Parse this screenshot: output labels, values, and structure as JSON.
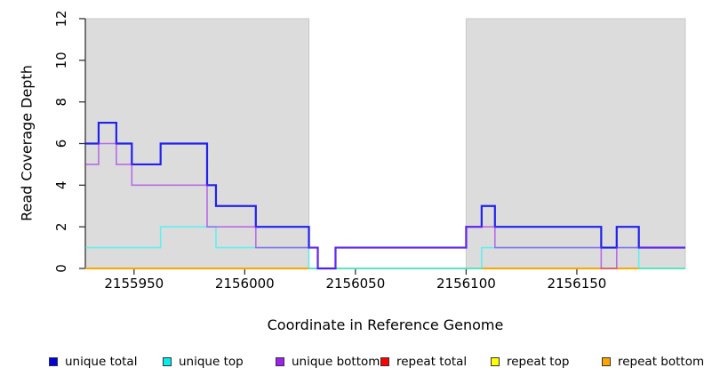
{
  "chart_data": {
    "type": "line",
    "subtype": "step-coverage-plot",
    "title": "",
    "x_axis": {
      "label": "Coordinate in Reference Genome",
      "ticks": [
        2155950,
        2156000,
        2156050,
        2156100,
        2156150
      ],
      "tick_labels": [
        "2155950",
        "2156000",
        "2156050",
        "2156100",
        "2156150"
      ],
      "range": [
        2155928,
        2156199
      ]
    },
    "y_axis": {
      "label": "Read Coverage Depth",
      "ticks": [
        0,
        2,
        4,
        6,
        8,
        10,
        12
      ],
      "tick_labels": [
        "0",
        "2",
        "4",
        "6",
        "8",
        "10",
        "12"
      ],
      "range": [
        0,
        12
      ]
    },
    "grid": "off",
    "shaded_regions": [
      {
        "x0": 2155928,
        "x1": 2156029,
        "color": "#dcdcdc"
      },
      {
        "x0": 2156100,
        "x1": 2156199,
        "color": "#dcdcdc"
      }
    ],
    "series": [
      {
        "name": "unique total",
        "color": "#0000ee",
        "opacity": 0.85,
        "width": 2.2,
        "steps": [
          [
            2155928,
            6
          ],
          [
            2155934,
            7
          ],
          [
            2155942,
            6
          ],
          [
            2155949,
            5
          ],
          [
            2155962,
            6
          ],
          [
            2155983,
            4
          ],
          [
            2155987,
            3
          ],
          [
            2156005,
            2
          ],
          [
            2156029,
            1
          ],
          [
            2156033,
            0
          ],
          [
            2156041,
            1
          ],
          [
            2156100,
            2
          ],
          [
            2156107,
            3
          ],
          [
            2156113,
            2
          ],
          [
            2156161,
            1
          ],
          [
            2156168,
            2
          ],
          [
            2156178,
            1
          ]
        ]
      },
      {
        "name": "unique top",
        "color": "#00ffff",
        "opacity": 0.55,
        "width": 1.6,
        "steps": [
          [
            2155928,
            1
          ],
          [
            2155962,
            2
          ],
          [
            2155987,
            1
          ],
          [
            2156029,
            0
          ],
          [
            2156107,
            1
          ],
          [
            2156178,
            0
          ]
        ]
      },
      {
        "name": "unique bottom",
        "color": "#a020f0",
        "opacity": 0.6,
        "width": 1.6,
        "steps": [
          [
            2155928,
            5
          ],
          [
            2155934,
            6
          ],
          [
            2155942,
            5
          ],
          [
            2155949,
            4
          ],
          [
            2155983,
            2
          ],
          [
            2156005,
            1
          ],
          [
            2156033,
            0
          ],
          [
            2156041,
            1
          ],
          [
            2156100,
            2
          ],
          [
            2156113,
            1
          ],
          [
            2156161,
            0
          ],
          [
            2156168,
            1
          ]
        ]
      },
      {
        "name": "repeat total",
        "color": "#ff0000",
        "opacity": 1,
        "width": 1.5,
        "steps": [
          [
            2155928,
            0
          ]
        ]
      },
      {
        "name": "repeat top",
        "color": "#ffff00",
        "opacity": 1,
        "width": 1.5,
        "steps": [
          [
            2155928,
            0
          ]
        ]
      },
      {
        "name": "repeat bottom",
        "color": "#ffa500",
        "opacity": 1,
        "width": 2,
        "steps": [
          [
            2155928,
            0
          ]
        ]
      }
    ],
    "baseline_segments": [
      {
        "x0": 2155928,
        "x1": 2156029,
        "color": "#ffa500"
      },
      {
        "x0": 2156029,
        "x1": 2156107,
        "color": "#99cf99"
      },
      {
        "x0": 2156107,
        "x1": 2156178,
        "color": "#ffa500"
      },
      {
        "x0": 2156178,
        "x1": 2156199,
        "color": "#99cf99"
      }
    ],
    "legend": {
      "position": "bottom",
      "items": [
        {
          "label": "unique total",
          "color": "#0000dd"
        },
        {
          "label": "unique top",
          "color": "#00eeee"
        },
        {
          "label": "unique bottom",
          "color": "#a020f0"
        },
        {
          "label": "repeat total",
          "color": "#ff0000"
        },
        {
          "label": "repeat top",
          "color": "#ffff00"
        },
        {
          "label": "repeat bottom",
          "color": "#ffa500"
        }
      ]
    },
    "colors": {
      "shaded_region": "#dcdcdc",
      "shaded_region_border": "#c9c9c9",
      "axis": "#333333",
      "baseline_green": "#99cf99",
      "baseline_orange": "#ffa500"
    }
  }
}
